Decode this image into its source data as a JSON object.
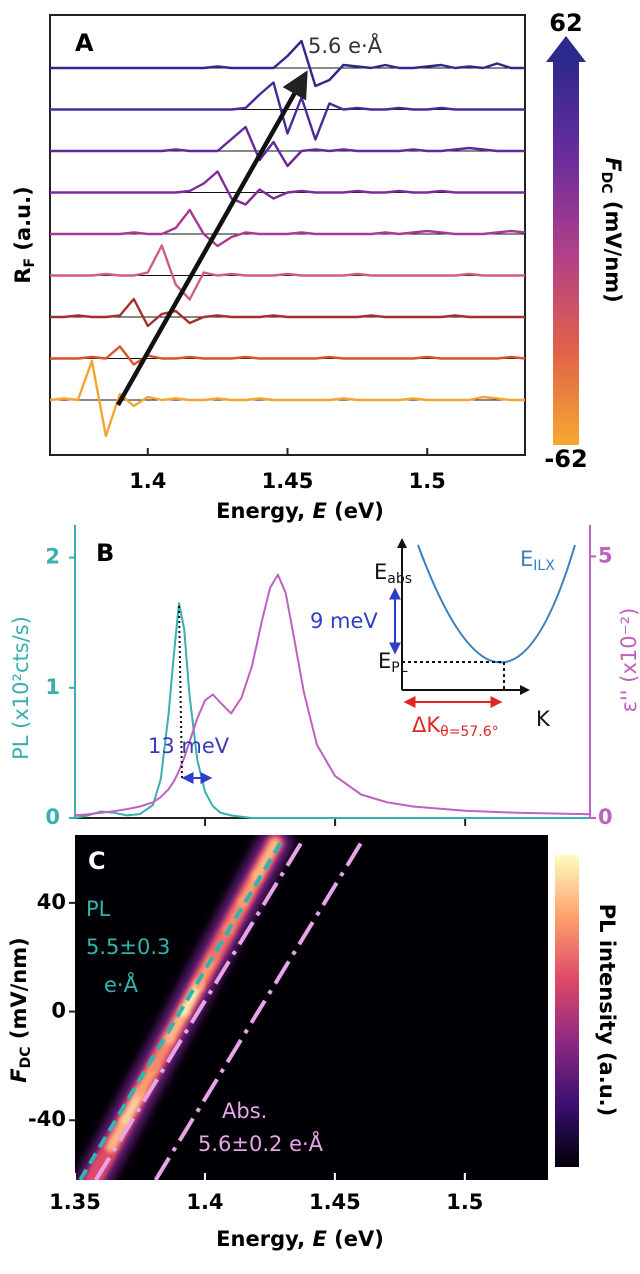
{
  "chart_data": [
    {
      "type": "line",
      "panel": "A",
      "xlim": [
        1.365,
        1.535
      ],
      "xticks": [
        1.4,
        1.45,
        1.5
      ],
      "xlabel": [
        {
          "text": "Energy, "
        },
        {
          "text": "E",
          "italic": true
        },
        {
          "text": " (eV)"
        }
      ],
      "ylabel": [
        {
          "text": "R"
        },
        {
          "text": "F",
          "sub": true
        },
        {
          "text": " (a.u.)"
        }
      ],
      "annotation": "5.6 e·Å",
      "x": [
        1.365,
        1.37,
        1.375,
        1.38,
        1.385,
        1.39,
        1.395,
        1.4,
        1.405,
        1.41,
        1.415,
        1.42,
        1.425,
        1.43,
        1.435,
        1.44,
        1.445,
        1.45,
        1.455,
        1.46,
        1.465,
        1.47,
        1.475,
        1.48,
        1.485,
        1.49,
        1.495,
        1.5,
        1.505,
        1.51,
        1.515,
        1.52,
        1.525,
        1.53,
        1.535
      ],
      "series": [
        {
          "color": "#f4a431",
          "values": [
            0,
            0.05,
            0,
            1.3,
            -1.2,
            0.2,
            -0.2,
            0.1,
            0,
            0.05,
            0,
            0,
            0.05,
            0,
            0,
            0.05,
            0,
            0,
            0,
            0,
            0,
            0.05,
            0,
            0,
            0,
            0,
            0.05,
            0,
            0,
            0,
            0,
            0.1,
            0.05,
            0,
            0
          ]
        },
        {
          "color": "#d9532c",
          "values": [
            0,
            0,
            0,
            0.05,
            0,
            0.4,
            -0.2,
            0.1,
            0,
            0,
            0.05,
            0,
            0,
            0,
            0.05,
            0,
            0,
            0,
            0,
            0,
            0.05,
            0,
            0,
            0,
            0,
            0,
            0,
            0.05,
            0,
            0,
            0,
            0,
            0,
            0.05,
            0
          ]
        },
        {
          "color": "#a3302c",
          "values": [
            0,
            0,
            0.05,
            0,
            0,
            0.05,
            0.6,
            -0.3,
            0.1,
            0.2,
            -0.2,
            0,
            0.05,
            0,
            0,
            0,
            0.05,
            0,
            0,
            0,
            0,
            0,
            0,
            0.05,
            0,
            0,
            0,
            0,
            0,
            0.05,
            0,
            0,
            0,
            0,
            0
          ]
        },
        {
          "color": "#d0607a",
          "values": [
            0,
            0,
            0,
            0,
            0.05,
            0,
            0,
            0.1,
            1.0,
            -0.3,
            -0.8,
            0.1,
            0,
            0.05,
            0,
            0,
            0,
            0.05,
            0,
            0,
            0,
            0,
            0.05,
            0,
            0,
            0,
            0,
            0,
            0,
            0,
            0.05,
            0,
            0,
            0,
            0
          ]
        },
        {
          "color": "#a83a95",
          "values": [
            0,
            0,
            0,
            0,
            0,
            0,
            0.05,
            0,
            0,
            0.2,
            0.8,
            0,
            -0.4,
            -0.1,
            0.05,
            0,
            0,
            0,
            0.05,
            0,
            0,
            0,
            0,
            0,
            0.05,
            0,
            0.05,
            0.1,
            0.05,
            0,
            0,
            0,
            0.05,
            0.1,
            0.05
          ]
        },
        {
          "color": "#7d2b98",
          "values": [
            0,
            0,
            0,
            0,
            0,
            0,
            0,
            0,
            0,
            0,
            0.05,
            0.3,
            0.7,
            -0.2,
            -0.4,
            0.1,
            -0.2,
            0,
            0.05,
            0,
            0,
            0,
            0.05,
            0,
            0,
            0.05,
            0,
            0,
            0.05,
            0,
            0,
            0,
            0,
            0,
            0
          ]
        },
        {
          "color": "#62299c",
          "values": [
            0,
            0,
            0,
            0,
            0,
            0,
            0,
            0,
            0,
            0.05,
            0,
            0,
            0,
            0.4,
            0.8,
            -0.3,
            0.3,
            -0.5,
            0,
            0.05,
            0,
            0.05,
            0,
            0,
            0,
            0,
            0.05,
            0,
            0,
            0.05,
            0.1,
            0.05,
            0,
            0,
            0
          ]
        },
        {
          "color": "#4a2a98",
          "values": [
            0,
            0,
            0,
            0,
            0,
            0,
            0,
            0,
            0,
            0,
            0,
            0,
            0,
            0,
            0.05,
            0.5,
            0.9,
            -0.8,
            0.4,
            -1.0,
            0.2,
            0,
            0.05,
            0,
            0,
            0.05,
            0,
            0,
            0.05,
            0,
            0,
            0,
            0,
            0,
            0
          ]
        },
        {
          "color": "#2c2a8a",
          "values": [
            0,
            0,
            0,
            0,
            0,
            0,
            0,
            0,
            0,
            0,
            0,
            0,
            0.05,
            0,
            0,
            0,
            0,
            0.4,
            0.9,
            -0.6,
            -0.4,
            0.1,
            0.05,
            0,
            0.1,
            0,
            0,
            0.05,
            0.1,
            0,
            0.05,
            0,
            0.15,
            0,
            0
          ]
        }
      ],
      "colorbar": {
        "lim": [
          -62,
          62
        ],
        "colors": [
          "#f7a830",
          "#e0604a",
          "#b0408a",
          "#6a2c9c",
          "#2c2a8c"
        ],
        "label": [
          {
            "text": "F",
            "italic": true
          },
          {
            "text": "DC",
            "sub": true
          },
          {
            "text": " (mV/nm)"
          }
        ]
      }
    },
    {
      "type": "line",
      "panel": "B",
      "xlim": [
        1.35,
        1.548
      ],
      "xticks": [
        1.4,
        1.45,
        1.5
      ],
      "ylim": [
        0,
        2.25
      ],
      "yticks": [
        0,
        1,
        2
      ],
      "y2lim": [
        0,
        5.6
      ],
      "y2ticks": [
        0,
        5
      ],
      "ylabel": "PL (x10²cts/s)",
      "y2label": "ε'' (x10⁻²)",
      "x": [
        1.35,
        1.355,
        1.36,
        1.365,
        1.37,
        1.375,
        1.38,
        1.383,
        1.386,
        1.388,
        1.39,
        1.392,
        1.394,
        1.397,
        1.4,
        1.403,
        1.406,
        1.41,
        1.414,
        1.418,
        1.422,
        1.425,
        1.428,
        1.431,
        1.434,
        1.438,
        1.443,
        1.45,
        1.46,
        1.47,
        1.48,
        1.5,
        1.52,
        1.548
      ],
      "series": [
        {
          "color": "#3aaeb0",
          "values": [
            0,
            0.02,
            0.05,
            0.04,
            0.02,
            0.03,
            0.1,
            0.3,
            0.8,
            1.25,
            1.65,
            1.45,
            0.95,
            0.45,
            0.2,
            0.09,
            0.04,
            0.02,
            0.01,
            0,
            0,
            0,
            0,
            0,
            0,
            0,
            0,
            0,
            0,
            0,
            0,
            0,
            0,
            0
          ]
        },
        {
          "color": "#c060c0",
          "axis": "y2",
          "values": [
            0.05,
            0.07,
            0.1,
            0.13,
            0.17,
            0.22,
            0.3,
            0.4,
            0.55,
            0.7,
            0.9,
            1.15,
            1.45,
            1.9,
            2.25,
            2.36,
            2.2,
            2.0,
            2.3,
            2.9,
            3.8,
            4.4,
            4.65,
            4.3,
            3.5,
            2.4,
            1.4,
            0.8,
            0.45,
            0.3,
            0.22,
            0.14,
            0.1,
            0.07
          ]
        }
      ],
      "annotation": "13 meV",
      "inset": {
        "eabs": [
          {
            "text": "E"
          },
          {
            "text": "abs",
            "sub": true
          }
        ],
        "epl": [
          {
            "text": "E"
          },
          {
            "text": "PL",
            "sub": true
          }
        ],
        "eilx": [
          {
            "text": "E"
          },
          {
            "text": "ILX",
            "sub": true
          }
        ],
        "split": "9 meV",
        "dk": [
          {
            "text": "ΔK"
          },
          {
            "text": "θ=57.6°",
            "sub": true
          }
        ],
        "k": "K"
      }
    },
    {
      "type": "heatmap",
      "panel": "C",
      "xlim": [
        1.35,
        1.532
      ],
      "xticks": [
        1.35,
        1.4,
        1.45,
        1.5
      ],
      "ylim": [
        -62,
        65
      ],
      "yticks": [
        40,
        0,
        -40
      ],
      "xlabel": [
        {
          "text": "Energy, "
        },
        {
          "text": "E",
          "italic": true
        },
        {
          "text": " (eV)"
        }
      ],
      "ylabel": [
        {
          "text": "F",
          "italic": true
        },
        {
          "text": "DC",
          "sub": true
        },
        {
          "text": " (mV/nm)"
        }
      ],
      "ridge": {
        "x": [
          1.357,
          1.3638,
          1.3694,
          1.375,
          1.3807,
          1.3863,
          1.392,
          1.3976,
          1.4032,
          1.4089,
          1.4145,
          1.4202,
          1.427
        ],
        "y": [
          -62,
          -50,
          -40,
          -30,
          -20,
          -10,
          0,
          10,
          20,
          30,
          40,
          50,
          62
        ],
        "intensity": [
          0.6,
          0.85,
          0.9,
          0.8,
          0.75,
          0.85,
          0.95,
          0.8,
          0.7,
          0.75,
          0.8,
          0.85,
          0.7
        ]
      },
      "series": [
        {
          "color": "#2fb5b0",
          "x": [
            1.352,
            1.429
          ],
          "y": [
            -62,
            62
          ]
        },
        {
          "color": "#e8a4e8",
          "x": [
            1.358,
            1.437
          ],
          "y": [
            -62,
            62
          ]
        },
        {
          "color": "#e8a4e8",
          "x": [
            1.381,
            1.46
          ],
          "y": [
            -62,
            62
          ]
        }
      ],
      "pl_label": [
        "PL",
        "5.5±0.3",
        "e·Å"
      ],
      "abs_label": [
        "Abs.",
        "5.6±0.2 e·Å"
      ],
      "colorbar": {
        "colors": [
          "#000004",
          "#3b0f70",
          "#8c2981",
          "#de4968",
          "#fe9f6d",
          "#fcfdbf"
        ],
        "label": "PL intensity (a.u.)"
      }
    }
  ]
}
